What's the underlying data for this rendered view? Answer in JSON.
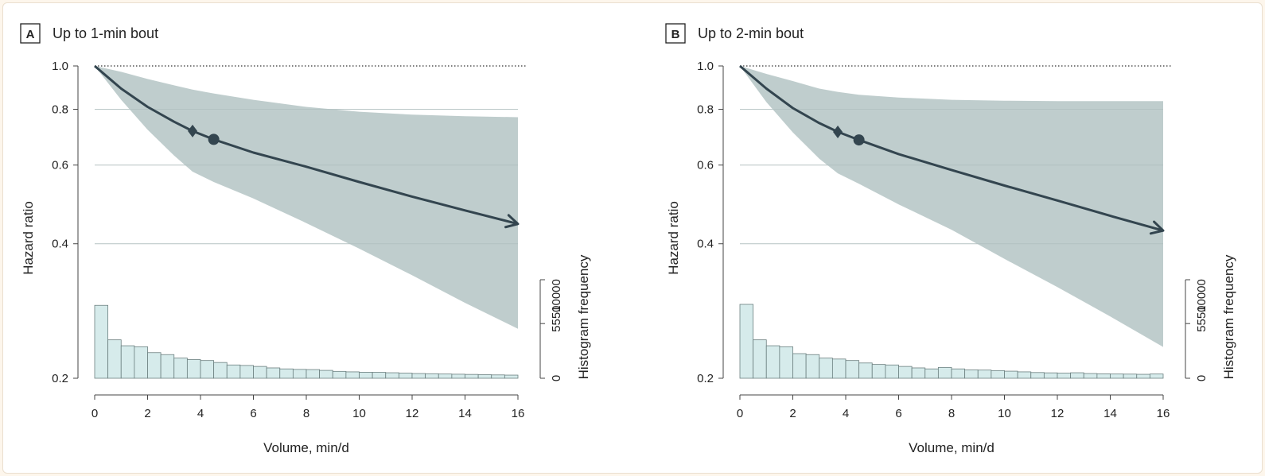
{
  "chart_data": [
    {
      "type": "line",
      "panel_letter": "A",
      "title": "Up to 1-min bout",
      "xlabel": "Volume, min/d",
      "ylabel": "Hazard ratio",
      "y2label": "Histogram frequency",
      "xlim": [
        0,
        16
      ],
      "ylim": [
        0.2,
        1.0
      ],
      "yscale": "log",
      "xticks": [
        "0",
        "2",
        "4",
        "6",
        "8",
        "10",
        "12",
        "14",
        "16"
      ],
      "yticks": [
        "0.2",
        "0.4",
        "0.6",
        "0.8",
        "1.0"
      ],
      "y2ticks": [
        "0",
        "5550",
        "10000"
      ],
      "reference_line": 1.0,
      "series": [
        {
          "x": [
            0,
            1,
            2,
            3,
            3.7,
            4.5,
            6,
            8,
            10,
            12,
            14,
            16
          ],
          "y": [
            1.0,
            0.89,
            0.81,
            0.75,
            0.715,
            0.685,
            0.64,
            0.595,
            0.55,
            0.51,
            0.475,
            0.443
          ],
          "ci_lower": [
            1.0,
            0.84,
            0.72,
            0.63,
            0.58,
            0.55,
            0.505,
            0.445,
            0.39,
            0.34,
            0.295,
            0.258
          ],
          "ci_upper": [
            1.0,
            0.97,
            0.935,
            0.905,
            0.885,
            0.868,
            0.84,
            0.81,
            0.79,
            0.778,
            0.772,
            0.768
          ]
        }
      ],
      "markers": [
        {
          "shape": "diamond",
          "x": 3.7,
          "y": 0.715
        },
        {
          "shape": "circle",
          "x": 4.5,
          "y": 0.685
        }
      ],
      "histogram": {
        "bin_width": 0.5,
        "y2max": 12000,
        "frequencies": [
          7400,
          3900,
          3300,
          3200,
          2600,
          2400,
          2050,
          1900,
          1800,
          1600,
          1350,
          1300,
          1200,
          1050,
          950,
          900,
          880,
          800,
          700,
          650,
          610,
          600,
          560,
          520,
          480,
          460,
          430,
          410,
          390,
          360,
          340,
          320
        ]
      }
    },
    {
      "type": "line",
      "panel_letter": "B",
      "title": "Up to 2-min bout",
      "xlabel": "Volume, min/d",
      "ylabel": "Hazard ratio",
      "y2label": "Histogram frequency",
      "xlim": [
        0,
        16
      ],
      "ylim": [
        0.2,
        1.0
      ],
      "yscale": "log",
      "xticks": [
        "0",
        "2",
        "4",
        "6",
        "8",
        "10",
        "12",
        "14",
        "16"
      ],
      "yticks": [
        "0.2",
        "0.4",
        "0.6",
        "0.8",
        "1.0"
      ],
      "y2ticks": [
        "0",
        "5550",
        "10000"
      ],
      "reference_line": 1.0,
      "series": [
        {
          "x": [
            0,
            1,
            2,
            3,
            3.7,
            4.5,
            6,
            8,
            10,
            12,
            14,
            16
          ],
          "y": [
            1.0,
            0.89,
            0.805,
            0.745,
            0.712,
            0.683,
            0.635,
            0.585,
            0.54,
            0.5,
            0.462,
            0.428
          ],
          "ci_lower": [
            1.0,
            0.83,
            0.71,
            0.62,
            0.575,
            0.545,
            0.49,
            0.43,
            0.37,
            0.32,
            0.275,
            0.235
          ],
          "ci_upper": [
            1.0,
            0.96,
            0.925,
            0.89,
            0.875,
            0.862,
            0.85,
            0.84,
            0.836,
            0.834,
            0.834,
            0.834
          ]
        }
      ],
      "markers": [
        {
          "shape": "diamond",
          "x": 3.7,
          "y": 0.712
        },
        {
          "shape": "circle",
          "x": 4.5,
          "y": 0.683
        }
      ],
      "histogram": {
        "bin_width": 0.5,
        "y2max": 12000,
        "frequencies": [
          7500,
          3900,
          3300,
          3200,
          2500,
          2400,
          2050,
          1950,
          1800,
          1550,
          1400,
          1350,
          1200,
          1050,
          950,
          1100,
          950,
          850,
          830,
          780,
          720,
          650,
          580,
          550,
          520,
          560,
          480,
          450,
          430,
          420,
          400,
          430
        ]
      }
    }
  ],
  "colors": {
    "ci_band": "#bccaca",
    "line": "#33454f",
    "hist_fill": "#d6ebeb",
    "hist_stroke": "#6b7f7f",
    "grid": "#c9d4d4",
    "axis": "#444444"
  }
}
